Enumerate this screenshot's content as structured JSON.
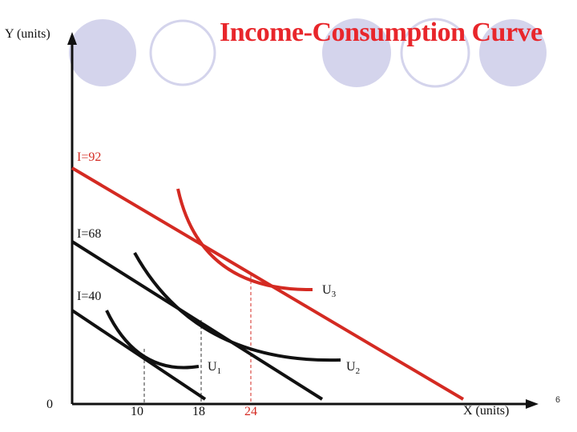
{
  "title": "Income-Consumption Curve",
  "axes": {
    "y_label": "Y (units)",
    "x_label": "X (units)",
    "origin": "0"
  },
  "slide_number": "6",
  "colors": {
    "accent": "#d42a22",
    "circles": "#d4d4ec",
    "line": "#111111"
  },
  "chart_data": {
    "budget_lines": [
      {
        "label": "I=40",
        "color": "#111111"
      },
      {
        "label": "I=68",
        "color": "#111111"
      },
      {
        "label": "I=92",
        "color": "#d42a22"
      }
    ],
    "indifference_curves": [
      {
        "label": "U",
        "subscript": "1",
        "color": "#111111"
      },
      {
        "label": "U",
        "subscript": "2",
        "color": "#111111"
      },
      {
        "label": "U",
        "subscript": "3",
        "color": "#d42a22"
      }
    ],
    "x_ticks": [
      "10",
      "18",
      "24"
    ]
  }
}
